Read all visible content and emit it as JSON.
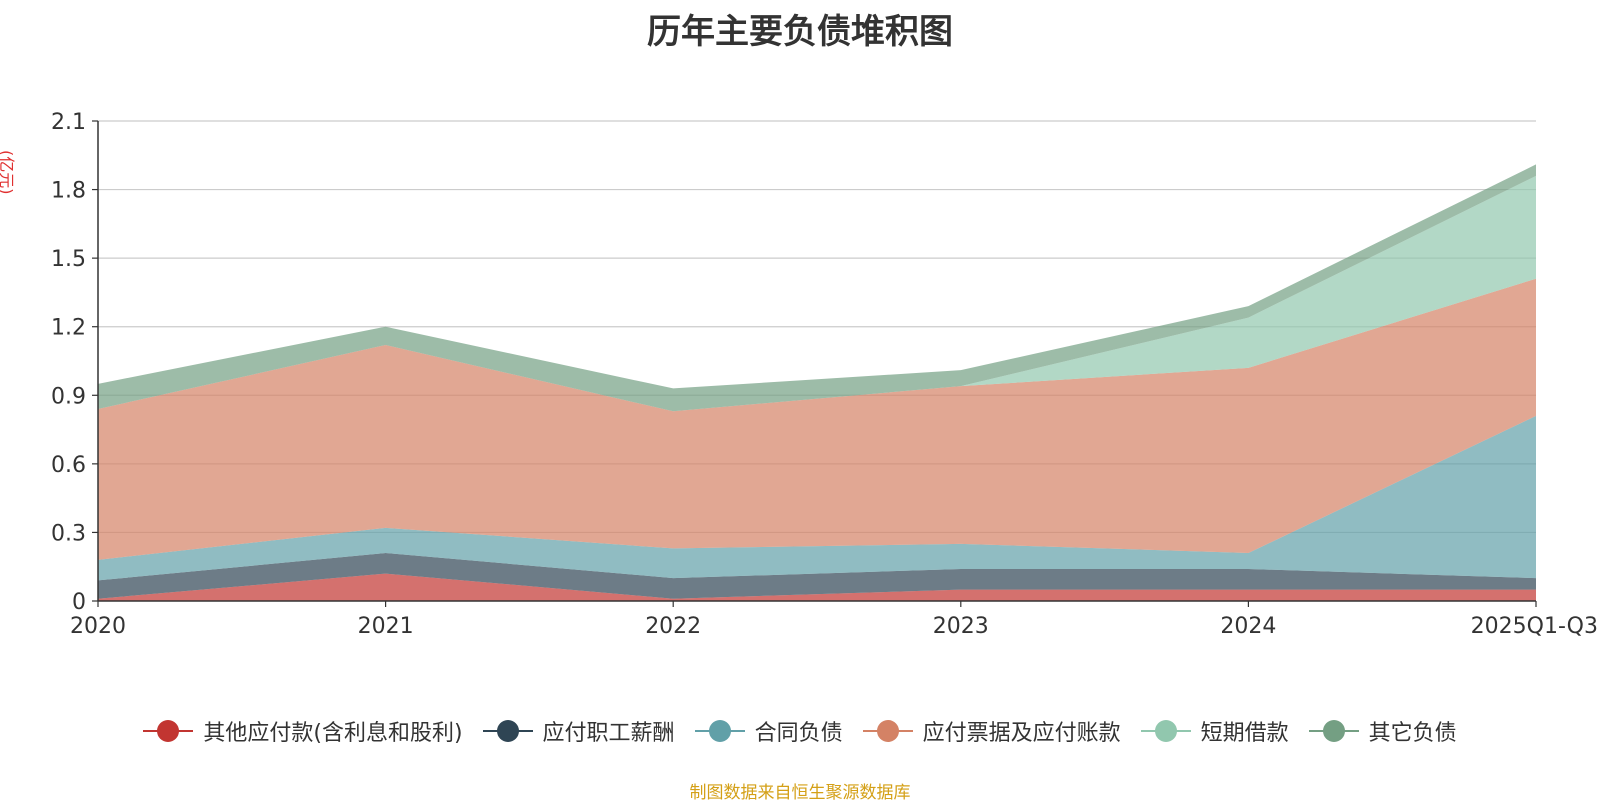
{
  "chart_data": {
    "type": "area",
    "stacked": true,
    "title": "历年主要负债堆积图",
    "unit_label": "(亿元)",
    "categories": [
      "2020",
      "2021",
      "2022",
      "2023",
      "2024",
      "2025Q1-Q3"
    ],
    "ylim": [
      0,
      2.1
    ],
    "yticks": [
      "0",
      "0.3",
      "0.6",
      "0.9",
      "1.2",
      "1.5",
      "1.8",
      "2.1"
    ],
    "grid": true,
    "legend_position": "bottom",
    "series": [
      {
        "name": "其他应付款(含利息和股利)",
        "color": "#c23531",
        "values": [
          0.01,
          0.12,
          0.01,
          0.05,
          0.05,
          0.05
        ]
      },
      {
        "name": "应付职工薪酬",
        "color": "#2f4554",
        "values": [
          0.08,
          0.09,
          0.09,
          0.09,
          0.09,
          0.05
        ]
      },
      {
        "name": "合同负债",
        "color": "#61a0a8",
        "values": [
          0.09,
          0.11,
          0.13,
          0.11,
          0.07,
          0.71
        ]
      },
      {
        "name": "应付票据及应付账款",
        "color": "#d48265",
        "values": [
          0.66,
          0.8,
          0.6,
          0.69,
          0.81,
          0.6
        ]
      },
      {
        "name": "短期借款",
        "color": "#91c7ae",
        "values": [
          0.0,
          0.0,
          0.0,
          0.0,
          0.22,
          0.45
        ]
      },
      {
        "name": "其它负债",
        "color": "#749f83",
        "values": [
          0.11,
          0.08,
          0.1,
          0.07,
          0.05,
          0.05
        ]
      }
    ]
  },
  "source_note": "制图数据来自恒生聚源数据库"
}
